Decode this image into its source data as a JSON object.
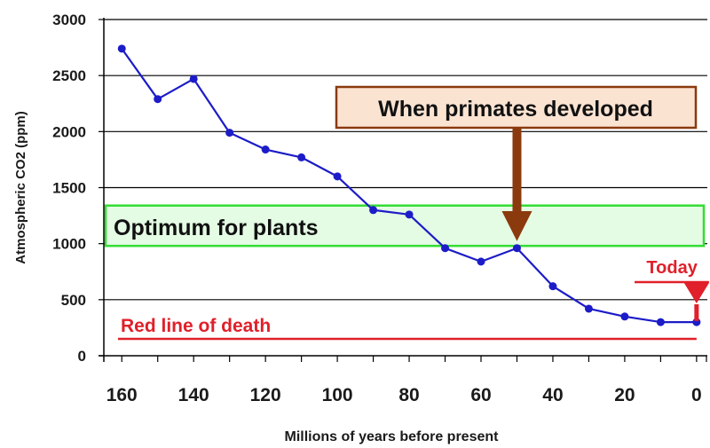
{
  "chart_data": {
    "type": "line",
    "title": "",
    "xlabel": "Millions of years before present",
    "ylabel": "Atmospheric CO2 (ppm)",
    "xlim": [
      165,
      -3
    ],
    "ylim": [
      0,
      3000
    ],
    "x_ticks": [
      "160",
      "140",
      "120",
      "100",
      "80",
      "60",
      "40",
      "20",
      "0"
    ],
    "x_tick_values": [
      160,
      140,
      120,
      100,
      80,
      60,
      40,
      20,
      0
    ],
    "y_ticks": [
      "0",
      "500",
      "1000",
      "1500",
      "2000",
      "2500",
      "3000"
    ],
    "y_tick_values": [
      0,
      500,
      1000,
      1500,
      2000,
      2500,
      3000
    ],
    "grid": true,
    "series": [
      {
        "x": [
          160,
          150,
          140,
          130,
          120,
          110,
          100,
          90,
          80,
          70,
          60,
          50,
          40,
          30,
          20,
          10,
          0
        ],
        "y": [
          2740,
          2290,
          2470,
          1990,
          1840,
          1770,
          1600,
          1300,
          1260,
          960,
          840,
          960,
          620,
          420,
          350,
          300,
          300
        ],
        "color": "#1c1cc8"
      }
    ],
    "annotations": {
      "primates": {
        "label": "When primates developed",
        "x": 50,
        "arrow_color": "#8b3a0e",
        "box_fill": "#fbe3d2",
        "box_border": "#8b3a0e"
      },
      "optimum": {
        "label": "Optimum for plants",
        "y_range": [
          980,
          1340
        ],
        "fill": "#e4fbe4",
        "border": "#33dd33"
      },
      "death_line": {
        "label": "Red line of death",
        "y": 150,
        "color": "#e0202a"
      },
      "today": {
        "label": "Today",
        "x": 0,
        "color": "#e0202a"
      }
    }
  }
}
